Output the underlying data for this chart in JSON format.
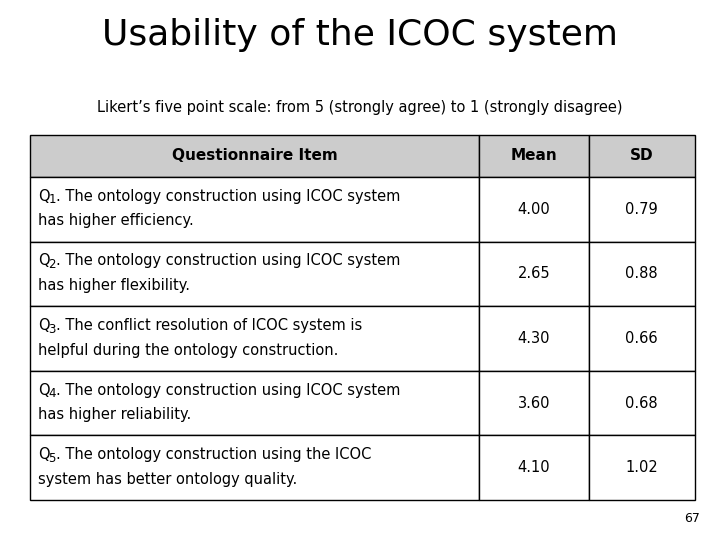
{
  "title": "Usability of the ICOC system",
  "subtitle": "Likert’s five point scale: from 5 (strongly agree) to 1 (strongly disagree)",
  "col_headers": [
    "Questionnaire Item",
    "Mean",
    "SD"
  ],
  "rows": [
    {
      "q_num": "1",
      "line1": ". The ontology construction using ICOC system",
      "line2": "has higher efficiency.",
      "mean": "4.00",
      "sd": "0.79"
    },
    {
      "q_num": "2",
      "line1": ". The ontology construction using ICOC system",
      "line2": "has higher flexibility.",
      "mean": "2.65",
      "sd": "0.88"
    },
    {
      "q_num": "3",
      "line1": ". The conflict resolution of ICOC system is",
      "line2": "helpful during the ontology construction.",
      "mean": "4.30",
      "sd": "0.66"
    },
    {
      "q_num": "4",
      "line1": ". The ontology construction using ICOC system",
      "line2": "has higher reliability.",
      "mean": "3.60",
      "sd": "0.68"
    },
    {
      "q_num": "5",
      "line1": ". The ontology construction using the ICOC",
      "line2": "system has better ontology quality.",
      "mean": "4.10",
      "sd": "1.02"
    }
  ],
  "page_num": "67",
  "bg_color": "#ffffff",
  "header_bg": "#cccccc",
  "title_fontsize": 26,
  "subtitle_fontsize": 10.5,
  "header_fontsize": 11,
  "cell_fontsize": 10.5,
  "font_family": "DejaVu Sans"
}
